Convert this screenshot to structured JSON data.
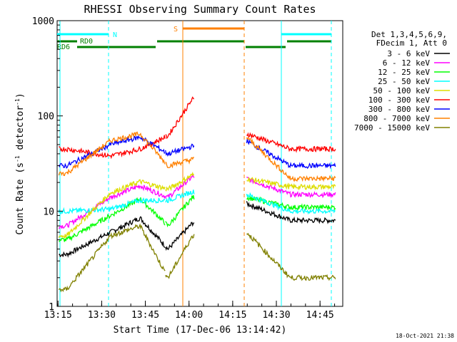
{
  "chart_data": {
    "type": "line",
    "title": "RHESSI Observing Summary Count Rates",
    "xlabel": "Start Time (17-Dec-06 13:14:42)",
    "ylabel_main": "Count Rate (s",
    "ylabel_sup1": "-1",
    "ylabel_mid": " detector",
    "ylabel_sup2": "-1",
    "ylabel_end": ")",
    "y_scale": "log",
    "ylim": [
      1,
      1000
    ],
    "x_tick_labels": [
      "13:15",
      "13:30",
      "13:45",
      "14:00",
      "14:15",
      "14:30",
      "14:45"
    ],
    "y_tick_labels": [
      "1",
      "10",
      "100",
      "1000"
    ],
    "timestamp": "18-Oct-2021 21:38",
    "legend_header": [
      "Det 1,3,4,5,6,9,",
      "FDecim 1, Att 0"
    ],
    "series": [
      {
        "name": "3 - 6 keV",
        "color": "#000000",
        "values": [
          [
            13.3,
            3.5
          ],
          [
            13.55,
            6.0
          ],
          [
            13.72,
            8.5
          ],
          [
            13.88,
            4.0
          ],
          [
            14.02,
            7.5
          ],
          [
            14.33,
            12.0
          ],
          [
            14.58,
            8.0
          ]
        ]
      },
      {
        "name": "6 - 12 keV",
        "color": "#ff00ff",
        "values": [
          [
            13.3,
            7.0
          ],
          [
            13.55,
            14.0
          ],
          [
            13.72,
            18.5
          ],
          [
            13.88,
            14.0
          ],
          [
            14.02,
            23.0
          ],
          [
            14.33,
            22.0
          ],
          [
            14.58,
            15.0
          ]
        ]
      },
      {
        "name": "12 - 25 keV",
        "color": "#00ff00",
        "values": [
          [
            13.3,
            5.0
          ],
          [
            13.55,
            9.0
          ],
          [
            13.72,
            13.5
          ],
          [
            13.88,
            7.0
          ],
          [
            14.02,
            14.0
          ],
          [
            14.33,
            14.0
          ],
          [
            14.58,
            11.0
          ]
        ]
      },
      {
        "name": "25 - 50 keV",
        "color": "#00ffff",
        "values": [
          [
            13.3,
            10.0
          ],
          [
            13.55,
            10.5
          ],
          [
            13.72,
            13.0
          ],
          [
            13.88,
            13.0
          ],
          [
            14.02,
            16.0
          ],
          [
            14.33,
            15.0
          ],
          [
            14.58,
            10.0
          ]
        ]
      },
      {
        "name": "50 - 100 keV",
        "color": "#dddd00",
        "values": [
          [
            13.3,
            5.5
          ],
          [
            13.55,
            15.5
          ],
          [
            13.72,
            20.5
          ],
          [
            13.88,
            17.0
          ],
          [
            14.02,
            24.0
          ],
          [
            14.33,
            22.0
          ],
          [
            14.58,
            18.0
          ]
        ]
      },
      {
        "name": "100 - 300 keV",
        "color": "#ff0000",
        "values": [
          [
            13.3,
            45.0
          ],
          [
            13.55,
            38.0
          ],
          [
            13.72,
            45.0
          ],
          [
            13.88,
            62.0
          ],
          [
            14.02,
            150.0
          ],
          [
            14.33,
            65.0
          ],
          [
            14.58,
            45.0
          ]
        ]
      },
      {
        "name": "300 - 800 keV",
        "color": "#0000ff",
        "values": [
          [
            13.3,
            30.0
          ],
          [
            13.55,
            50.0
          ],
          [
            13.72,
            60.0
          ],
          [
            13.88,
            40.0
          ],
          [
            14.02,
            48.0
          ],
          [
            14.33,
            55.0
          ],
          [
            14.58,
            30.0
          ]
        ]
      },
      {
        "name": "800 - 7000 keV",
        "color": "#ff8000",
        "values": [
          [
            13.3,
            25.0
          ],
          [
            13.55,
            55.0
          ],
          [
            13.72,
            65.0
          ],
          [
            13.88,
            30.0
          ],
          [
            14.02,
            35.0
          ],
          [
            14.33,
            60.0
          ],
          [
            14.58,
            22.0
          ]
        ]
      },
      {
        "name": "7000 - 15000 keV",
        "color": "#808000",
        "values": [
          [
            13.3,
            1.5
          ],
          [
            13.55,
            5.5
          ],
          [
            13.72,
            7.0
          ],
          [
            13.88,
            2.0
          ],
          [
            14.02,
            5.5
          ],
          [
            14.33,
            6.0
          ],
          [
            14.58,
            2.0
          ]
        ]
      }
    ],
    "state_markers": [
      {
        "label": "N",
        "color": "#00ffff"
      },
      {
        "label": "RD0",
        "color": "#008000"
      },
      {
        "label": "RD6",
        "color": "#008000"
      },
      {
        "label": "S",
        "color": "#ff8000"
      }
    ]
  }
}
